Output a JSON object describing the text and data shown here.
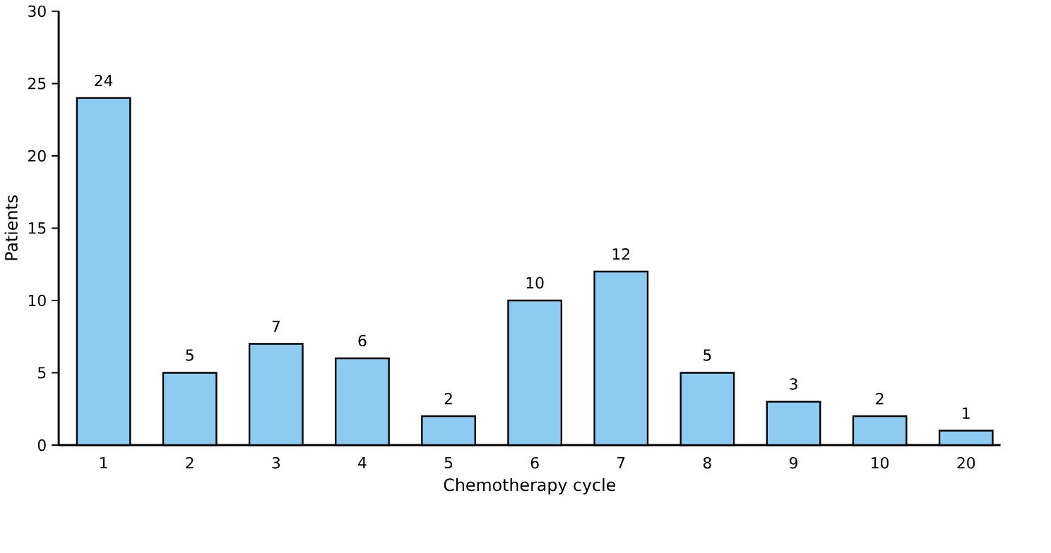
{
  "chart_data": {
    "type": "bar",
    "xlabel": "Chemotherapy cycle",
    "ylabel": "Patients",
    "categories": [
      "1",
      "2",
      "3",
      "4",
      "5",
      "6",
      "7",
      "8",
      "9",
      "10",
      "20"
    ],
    "values": [
      24,
      5,
      7,
      6,
      2,
      10,
      12,
      5,
      3,
      2,
      1
    ],
    "color": "#8ecbf0",
    "ylim": [
      0,
      30
    ],
    "yticks": [
      0,
      5,
      10,
      15,
      20,
      25,
      30
    ],
    "data_labels": true,
    "grid": false
  }
}
